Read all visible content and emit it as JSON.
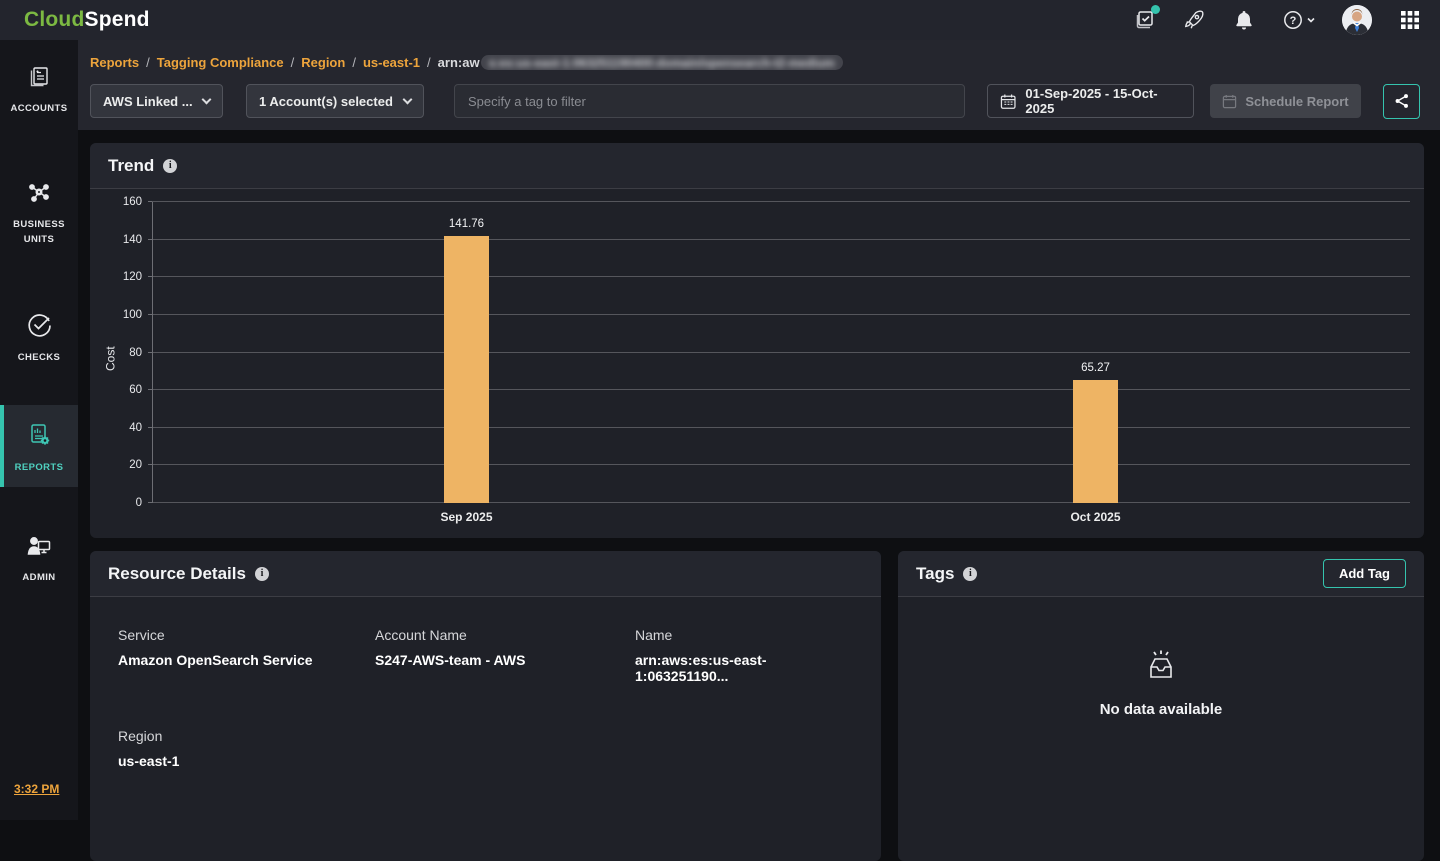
{
  "brand": {
    "cloud": "Cloud",
    "spend": "Spend"
  },
  "sidebar": {
    "items": [
      {
        "label": "ACCOUNTS"
      },
      {
        "label": "BUSINESS UNITS"
      },
      {
        "label": "CHECKS"
      },
      {
        "label": "REPORTS",
        "active": true
      },
      {
        "label": "ADMIN"
      }
    ],
    "time": "3:32 PM"
  },
  "breadcrumb": {
    "links": [
      "Reports",
      "Tagging Compliance",
      "Region",
      "us-east-1"
    ],
    "separator": "/",
    "current_prefix": "arn:aw",
    "current_blurred": "s:es:us-east-1:063251190400:domain/opensearch-t2-medium"
  },
  "filters": {
    "view_dropdown": "AWS Linked ...",
    "accounts_dropdown": "1 Account(s) selected",
    "tag_placeholder": "Specify a tag to filter",
    "date_range": "01-Sep-2025 - 15-Oct-2025",
    "schedule_label": "Schedule Report"
  },
  "trend": {
    "title": "Trend"
  },
  "chart_data": {
    "type": "bar",
    "categories": [
      "Sep 2025",
      "Oct 2025"
    ],
    "values": [
      141.76,
      65.27
    ],
    "title": "Trend",
    "xlabel": "",
    "ylabel": "Cost",
    "ylim": [
      0,
      160
    ],
    "ytick_step": 20,
    "grid": true,
    "legend": false,
    "bar_color": "#eeb464"
  },
  "resource_details": {
    "title": "Resource Details",
    "fields": [
      {
        "label": "Service",
        "value": "Amazon OpenSearch Service"
      },
      {
        "label": "Account Name",
        "value": "S247-AWS-team - AWS"
      },
      {
        "label": "Name",
        "value": "arn:aws:es:us-east-1:063251190..."
      },
      {
        "label": "Region",
        "value": "us-east-1"
      }
    ]
  },
  "tags": {
    "title": "Tags",
    "add_button": "Add Tag",
    "empty_text": "No data available"
  },
  "colors": {
    "accent_teal": "#35c4ae",
    "accent_orange": "#eda43c",
    "bar_orange": "#eeb464",
    "brand_green": "#7cb942"
  }
}
